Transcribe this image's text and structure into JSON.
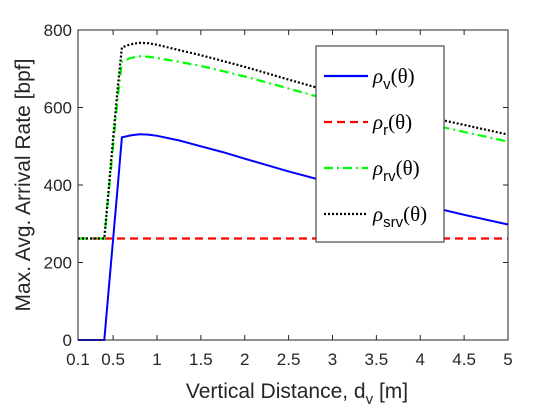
{
  "chart_data": {
    "type": "line",
    "xlabel": "Vertical Distance, d",
    "xlabel_sub": "v",
    "xlabel_unit": " [m]",
    "ylabel": "Max. Avg. Arrival Rate [bpf]",
    "xlim": [
      0.1,
      5
    ],
    "ylim": [
      0,
      800
    ],
    "xticks": [
      0.1,
      0.5,
      1,
      1.5,
      2,
      2.5,
      3,
      3.5,
      4,
      4.5,
      5
    ],
    "xtick_labels": [
      "0.1",
      "0.5",
      "1",
      "1.5",
      "2",
      "2.5",
      "3",
      "3.5",
      "4",
      "4.5",
      "5"
    ],
    "yticks": [
      0,
      200,
      400,
      600,
      800
    ],
    "ytick_labels": [
      "0",
      "200",
      "400",
      "600",
      "800"
    ],
    "grid": false,
    "legend_position": "top-right",
    "series": [
      {
        "name": "ρ",
        "sub": "v",
        "arg": "(θ)",
        "color": "#0000ff",
        "style": "solid",
        "x": [
          0.1,
          0.4,
          0.45,
          0.5,
          0.55,
          0.6,
          0.7,
          0.8,
          0.9,
          1.0,
          1.25,
          1.5,
          1.75,
          2.0,
          2.5,
          3.0,
          3.5,
          4.0,
          4.5,
          5.0
        ],
        "y": [
          0,
          0,
          130,
          260,
          390,
          523,
          528,
          531,
          530,
          527,
          515,
          500,
          485,
          468,
          435,
          405,
          377,
          350,
          323,
          298
        ]
      },
      {
        "name": "ρ",
        "sub": "r",
        "arg": "(θ)",
        "color": "#ff0000",
        "style": "dashed",
        "x": [
          0.1,
          5.0
        ],
        "y": [
          262,
          262
        ]
      },
      {
        "name": "ρ",
        "sub": "rv",
        "arg": "(θ)",
        "color": "#00ff00",
        "style": "dashdot",
        "x": [
          0.1,
          0.4,
          0.45,
          0.5,
          0.55,
          0.6,
          0.7,
          0.8,
          0.9,
          1.0,
          1.25,
          1.5,
          1.75,
          2.0,
          2.5,
          3.0,
          3.5,
          4.0,
          4.5,
          5.0
        ],
        "y": [
          262,
          262,
          380,
          500,
          620,
          718,
          728,
          732,
          731,
          728,
          718,
          707,
          694,
          680,
          649,
          617,
          587,
          562,
          537,
          512
        ]
      },
      {
        "name": "ρ",
        "sub": "srv",
        "arg": "(θ)",
        "color": "#000000",
        "style": "dotted",
        "x": [
          0.1,
          0.4,
          0.45,
          0.5,
          0.55,
          0.6,
          0.7,
          0.8,
          0.9,
          1.0,
          1.25,
          1.5,
          1.75,
          2.0,
          2.5,
          3.0,
          3.5,
          4.0,
          4.5,
          5.0
        ],
        "y": [
          262,
          262,
          390,
          520,
          645,
          755,
          763,
          767,
          766,
          762,
          748,
          735,
          720,
          705,
          672,
          640,
          608,
          580,
          555,
          530
        ]
      }
    ]
  }
}
